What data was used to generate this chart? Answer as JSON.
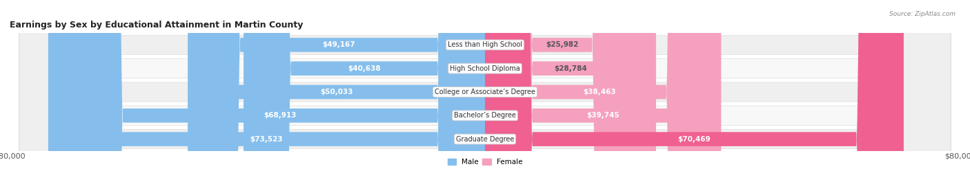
{
  "title": "Earnings by Sex by Educational Attainment in Martin County",
  "source": "Source: ZipAtlas.com",
  "categories": [
    "Less than High School",
    "High School Diploma",
    "College or Associate’s Degree",
    "Bachelor’s Degree",
    "Graduate Degree"
  ],
  "male_values": [
    49167,
    40638,
    50033,
    68913,
    73523
  ],
  "female_values": [
    25982,
    28784,
    38463,
    39745,
    70469
  ],
  "male_color": "#85BEEC",
  "female_color": "#F4A0BE",
  "female_color_hot": "#F06090",
  "axis_max": 80000,
  "bg_color": "#FFFFFF",
  "row_bg_even": "#F0F0F0",
  "row_bg_odd": "#FAFAFA",
  "title_fontsize": 9,
  "label_fontsize": 7.5,
  "tick_fontsize": 8
}
